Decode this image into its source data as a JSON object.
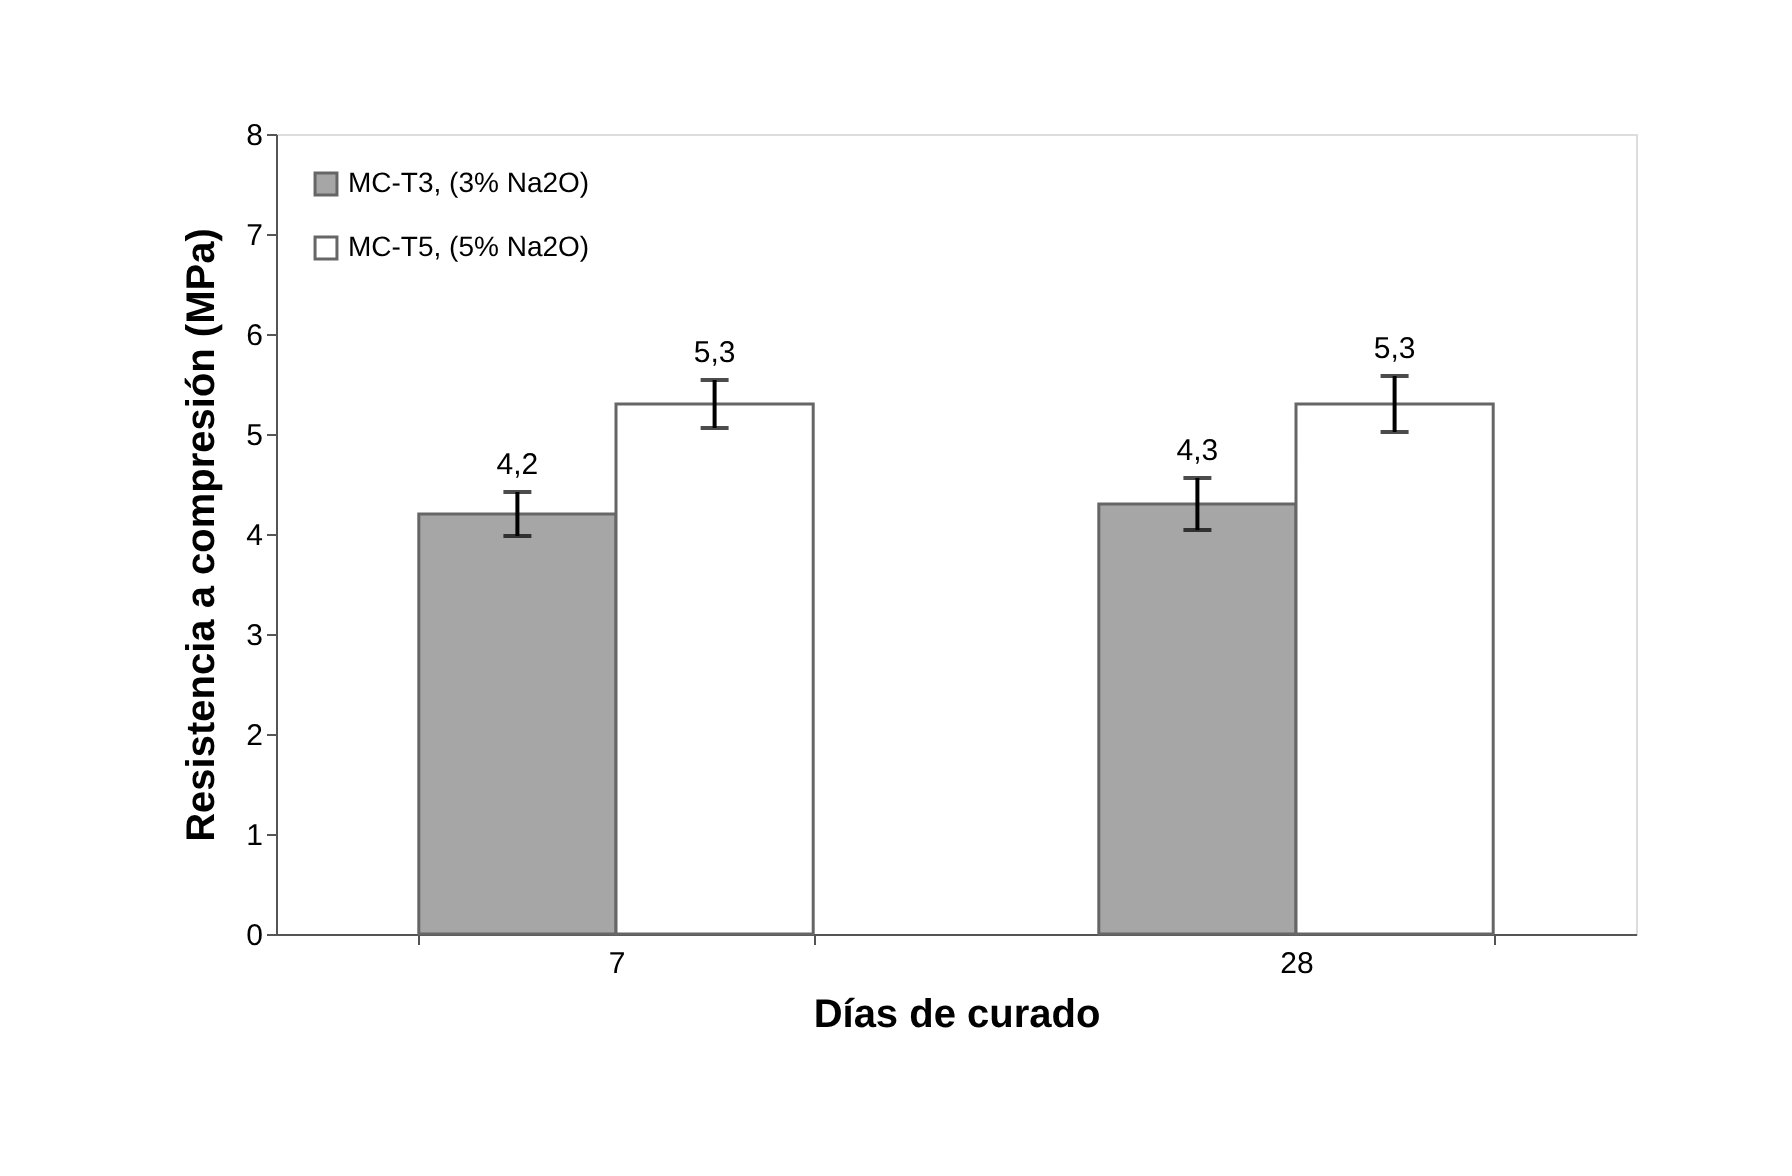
{
  "chart_data": {
    "type": "bar",
    "xlabel": "Días de curado",
    "ylabel": "Resistencia a compresión (MPa)",
    "categories": [
      "7",
      "28"
    ],
    "series": [
      {
        "name": "MC-T3, (3% Na2O)",
        "color": "#a6a6a6",
        "values": [
          4.2,
          4.3
        ],
        "errors": [
          0.22,
          0.26
        ],
        "value_labels": [
          "4,2",
          "4,3"
        ]
      },
      {
        "name": "MC-T5, (5% Na2O)",
        "color": "#ffffff",
        "values": [
          5.3,
          5.3
        ],
        "errors": [
          0.24,
          0.28
        ],
        "value_labels": [
          "5,3",
          "5,3"
        ]
      }
    ],
    "ylim": [
      0,
      8
    ],
    "yticks": [
      0,
      1,
      2,
      3,
      4,
      5,
      6,
      7,
      8
    ],
    "grid": false,
    "legend": "top left"
  }
}
